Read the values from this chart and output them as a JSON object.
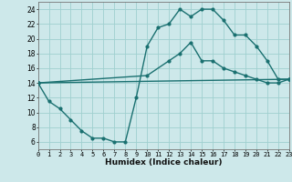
{
  "xlabel": "Humidex (Indice chaleur)",
  "xlim": [
    0,
    23
  ],
  "ylim": [
    5,
    25
  ],
  "xticks": [
    0,
    1,
    2,
    3,
    4,
    5,
    6,
    7,
    8,
    9,
    10,
    11,
    12,
    13,
    14,
    15,
    16,
    17,
    18,
    19,
    20,
    21,
    22,
    23
  ],
  "yticks": [
    6,
    8,
    10,
    12,
    14,
    16,
    18,
    20,
    22,
    24
  ],
  "bg_color": "#cde8ea",
  "grid_color": "#9fcfcf",
  "line_color": "#1a7070",
  "line1_x": [
    0,
    1,
    2,
    3,
    4,
    5,
    6,
    7,
    8,
    9,
    10,
    11,
    12,
    13,
    14,
    15,
    16,
    17,
    18,
    19,
    20,
    21,
    22,
    23
  ],
  "line1_y": [
    14,
    11.5,
    10.5,
    9,
    7.5,
    6.5,
    6.5,
    6,
    6,
    12,
    19,
    21.5,
    22,
    24,
    23,
    24,
    24,
    22.5,
    20.5,
    20.5,
    19,
    17,
    14.5,
    14.5
  ],
  "line2_x": [
    0,
    23
  ],
  "line2_y": [
    14,
    14.5
  ],
  "line3_x": [
    0,
    10,
    12,
    13,
    14,
    15,
    16,
    17,
    18,
    19,
    20,
    21,
    22,
    23
  ],
  "line3_y": [
    14,
    15,
    17,
    18,
    19.5,
    17,
    17,
    16,
    15.5,
    15,
    14.5,
    14,
    14,
    14.5
  ]
}
